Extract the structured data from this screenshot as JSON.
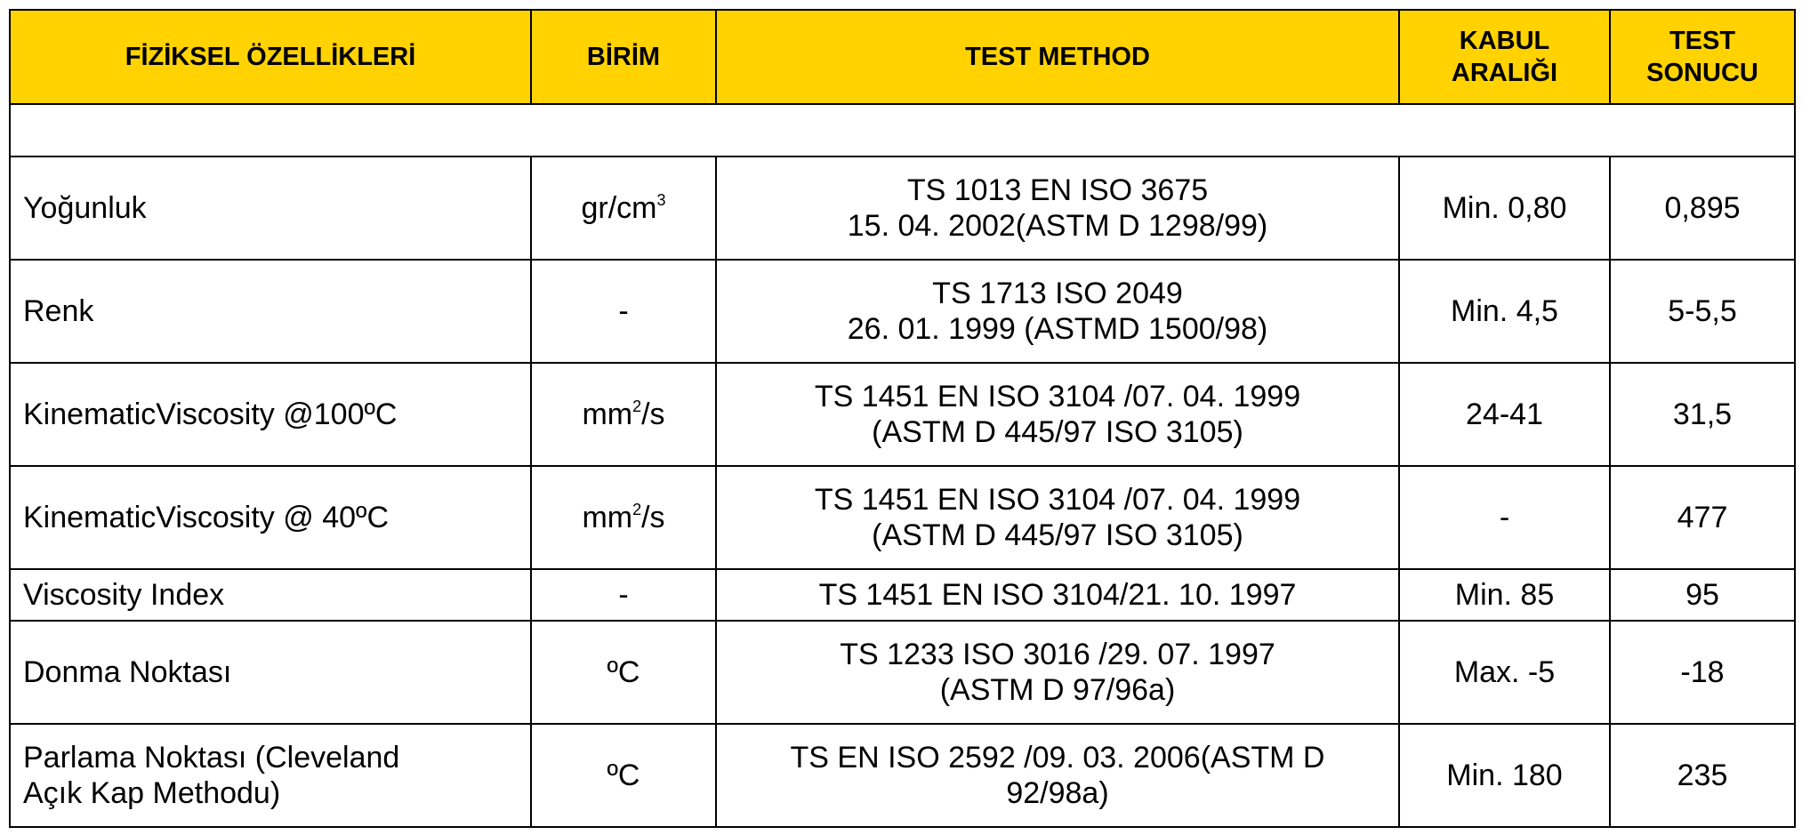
{
  "table": {
    "header": [
      "FİZİKSEL ÖZELLİKLERİ",
      "BİRİM",
      "TEST METHOD",
      [
        "KABUL",
        "ARALIĞI"
      ],
      [
        "TEST",
        "SONUCU"
      ]
    ],
    "rows": [
      {
        "property": [
          "Yoğunluk"
        ],
        "unit": {
          "text": "gr/cm",
          "sup": "3"
        },
        "method": [
          "TS 1013 EN ISO 3675",
          "15. 04. 2002(ASTM D 1298/99)"
        ],
        "range": "Min. 0,80",
        "result": "0,895"
      },
      {
        "property": [
          "Renk"
        ],
        "unit": {
          "text": "-"
        },
        "method": [
          "TS 1713 ISO 2049",
          "26. 01. 1999 (ASTMD 1500/98)"
        ],
        "range": "Min. 4,5",
        "result": "5-5,5"
      },
      {
        "property": [
          "KinematicViscosity @100ºC"
        ],
        "unit": {
          "text": "mm",
          "sup": "2",
          "after": "/s"
        },
        "method": [
          "TS 1451 EN ISO 3104 /07. 04. 1999",
          "(ASTM D 445/97 ISO 3105)"
        ],
        "range": "24-41",
        "result": "31,5"
      },
      {
        "property": [
          "KinematicViscosity @ 40ºC"
        ],
        "unit": {
          "text": "mm",
          "sup": "2",
          "after": "/s"
        },
        "method": [
          "TS 1451 EN ISO 3104 /07. 04. 1999",
          "(ASTM D 445/97 ISO 3105)"
        ],
        "range": "-",
        "result": "477"
      },
      {
        "property": [
          "Viscosity Index"
        ],
        "unit": {
          "text": "-"
        },
        "method": [
          "TS 1451 EN ISO 3104/21. 10. 1997"
        ],
        "range": "Min. 85",
        "result": "95"
      },
      {
        "property": [
          "Donma Noktası"
        ],
        "unit": {
          "text": "ºC"
        },
        "method": [
          "TS 1233 ISO 3016 /29. 07. 1997",
          "(ASTM D 97/96a)"
        ],
        "range": "Max. -5",
        "result": "-18"
      },
      {
        "property": [
          "Parlama Noktası (Cleveland",
          "Açık Kap Methodu)"
        ],
        "unit": {
          "text": "ºC"
        },
        "method": [
          "TS EN ISO 2592 /09. 03. 2006(ASTM D",
          "92/98a)"
        ],
        "range": "Min. 180",
        "result": "235"
      }
    ]
  }
}
